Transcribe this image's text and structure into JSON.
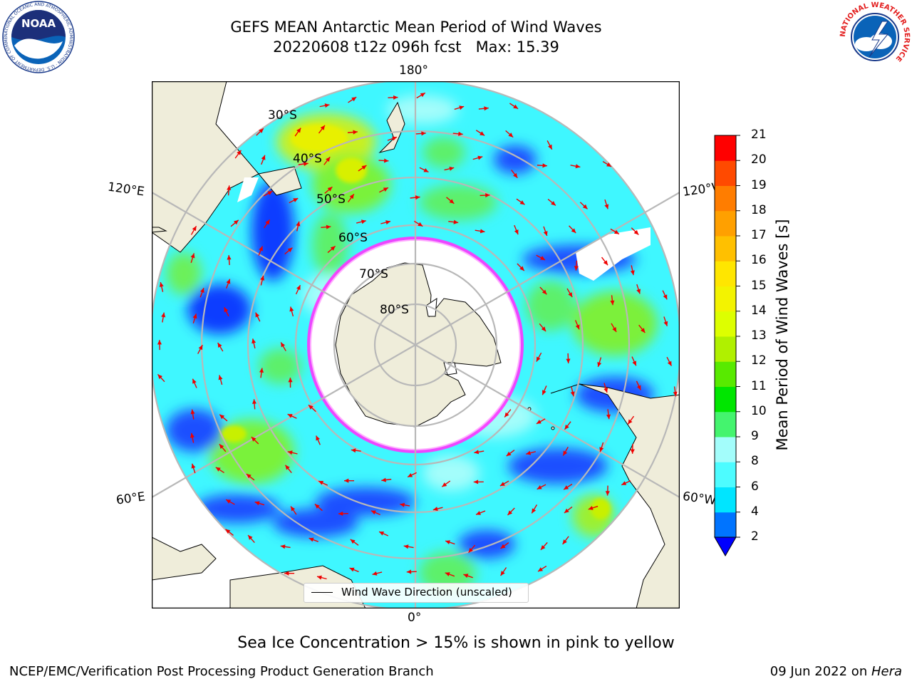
{
  "header": {
    "title_line1": "GEFS MEAN Antarctic Mean Period of Wind Waves",
    "title_line2": "20220608 t12z 096h fcst   Max: 15.39"
  },
  "logos": {
    "left": "NOAA",
    "left_ring_text": "NATIONAL OCEANIC AND ATMOSPHERIC ADMINISTRATION · U.S. DEPARTMENT OF COMMERCE",
    "right_ring_text": "NATIONAL WEATHER SERVICE"
  },
  "map": {
    "projection": "south-polar-stereographic",
    "longitude_labels": {
      "top": "180°",
      "bottom": "0°",
      "left_upper": "120°E",
      "left_lower": "60°E",
      "right_upper": "120°W",
      "right_lower": "60°W"
    },
    "latitude_labels": [
      "30°S",
      "40°S",
      "50°S",
      "60°S",
      "70°S",
      "80°S"
    ],
    "land_color": "#efedda",
    "sea_ice_color": "#ffffff",
    "ice_edge_colors": [
      "#ff33ff",
      "#ffb0ff",
      "#ffee44"
    ],
    "arrow_color": "#ee0000",
    "legend_label": "Wind Wave Direction (unscaled)"
  },
  "colorbar": {
    "title": "Mean Period of Wind Waves [s]",
    "ticks": [
      "2",
      "4",
      "6",
      "8",
      "9",
      "10",
      "11",
      "12",
      "13",
      "14",
      "15",
      "16",
      "17",
      "18",
      "19",
      "20",
      "21"
    ],
    "colors": [
      "#0074ff",
      "#00e5ff",
      "#4dfcff",
      "#a3fdfb",
      "#44f46e",
      "#00e600",
      "#58ea00",
      "#b0f000",
      "#ddff00",
      "#f3f300",
      "#ffe600",
      "#ffc000",
      "#ffa000",
      "#ff7d00",
      "#ff4a00",
      "#ff0000"
    ],
    "extend_below_color": "#0000ff"
  },
  "chart_data": {
    "type": "heatmap",
    "variable": "Mean Period of Wind Waves [s]",
    "model": "GEFS MEAN",
    "region": "Antarctic",
    "init": "20220608 t12z",
    "forecast_hour": "096h",
    "max": 15.39,
    "color_levels": [
      2,
      4,
      6,
      8,
      9,
      10,
      11,
      12,
      13,
      14,
      15,
      16,
      17,
      18,
      19,
      20,
      21
    ],
    "overlay": "Sea Ice Concentration > 15%"
  },
  "caption": "Sea Ice Concentration > 15% is shown in pink to yellow",
  "footer": {
    "left": "NCEP/EMC/Verification Post Processing Product Generation Branch",
    "right_prefix": "09 Jun 2022 on ",
    "right_host": "Hera"
  }
}
